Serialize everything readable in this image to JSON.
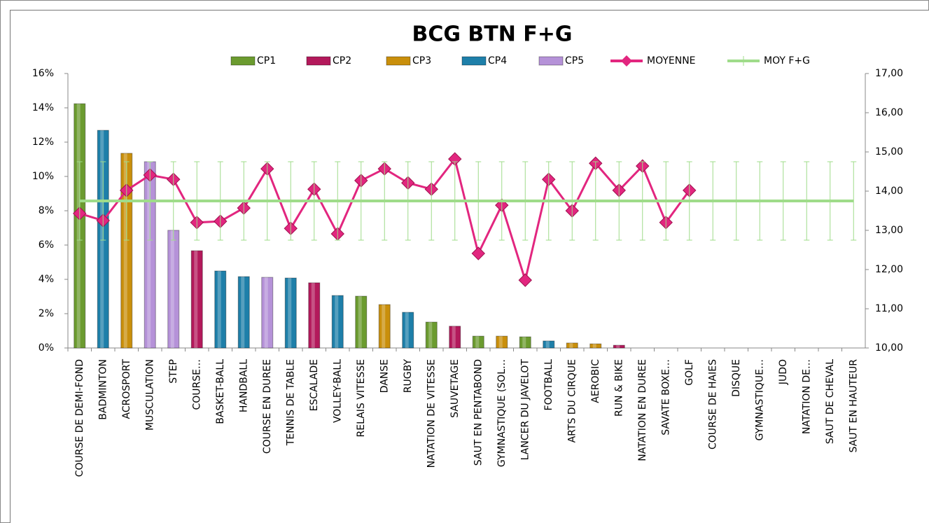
{
  "chart_data": {
    "type": "bar",
    "title": "BCG BTN F+G",
    "categories": [
      "COURSE DE DEMI-FOND",
      "BADMINTON",
      "ACROSPORT",
      "MUSCULATION",
      "STEP",
      "COURSE…",
      "BASKET-BALL",
      "HANDBALL",
      "COURSE EN DUREE",
      "TENNIS DE TABLE",
      "ESCALADE",
      "VOLLEY-BALL",
      "RELAIS VITESSE",
      "DANSE",
      "RUGBY",
      "NATATION DE VITESSE",
      "SAUVETAGE",
      "SAUT EN PENTABOND",
      "GYMNASTIQUE (SOL…",
      "LANCER DU JAVELOT",
      "FOOTBALL",
      "ARTS DU CIRQUE",
      "AEROBIC",
      "RUN & BIKE",
      "NATATION EN DUREE",
      "SAVATE BOXE…",
      "GOLF",
      "COURSE DE HAIES",
      "DISQUE",
      "GYMNASTIQUE…",
      "JUDO",
      "NATATION DE…",
      "SAUT DE CHEVAL",
      "SAUT EN HAUTEUR"
    ],
    "series": [
      {
        "name": "CP1",
        "type": "bar",
        "color": "#6b9b2f",
        "values": [
          14.24,
          null,
          null,
          null,
          null,
          null,
          null,
          null,
          null,
          null,
          null,
          null,
          3.02,
          null,
          null,
          1.51,
          null,
          0.69,
          null,
          0.65,
          null,
          null,
          null,
          null,
          null,
          null,
          null,
          null,
          null,
          null,
          null,
          null,
          null,
          null
        ]
      },
      {
        "name": "CP2",
        "type": "bar",
        "color": "#b3195b",
        "values": [
          null,
          null,
          null,
          null,
          null,
          5.67,
          null,
          null,
          null,
          null,
          3.8,
          null,
          null,
          null,
          null,
          null,
          1.27,
          null,
          null,
          null,
          null,
          null,
          null,
          0.16,
          null,
          null,
          null,
          null,
          null,
          null,
          null,
          null,
          null,
          null
        ]
      },
      {
        "name": "CP3",
        "type": "bar",
        "color": "#c98f0b",
        "values": [
          null,
          null,
          11.35,
          null,
          null,
          null,
          null,
          null,
          null,
          null,
          null,
          null,
          null,
          2.53,
          null,
          null,
          null,
          null,
          0.69,
          null,
          null,
          0.29,
          0.24,
          null,
          null,
          null,
          null,
          null,
          null,
          null,
          null,
          null,
          null,
          null
        ]
      },
      {
        "name": "CP4",
        "type": "bar",
        "color": "#1e7fa9",
        "values": [
          null,
          12.69,
          null,
          null,
          null,
          null,
          4.49,
          4.16,
          null,
          4.08,
          null,
          3.06,
          null,
          null,
          2.08,
          null,
          null,
          null,
          null,
          null,
          0.41,
          null,
          null,
          null,
          null,
          null,
          null,
          null,
          null,
          null,
          null,
          null,
          null,
          null
        ]
      },
      {
        "name": "CP5",
        "type": "bar",
        "color": "#b592d8",
        "values": [
          null,
          null,
          null,
          10.86,
          6.86,
          null,
          null,
          null,
          4.12,
          null,
          null,
          null,
          null,
          null,
          null,
          null,
          null,
          null,
          null,
          null,
          null,
          null,
          null,
          null,
          null,
          null,
          null,
          null,
          null,
          null,
          null,
          null,
          null,
          null
        ]
      },
      {
        "name": "MOYENNE",
        "type": "line",
        "axis": "y2",
        "color": "#e2267f",
        "values": [
          13.43,
          13.25,
          14.02,
          14.41,
          14.3,
          13.2,
          13.23,
          13.57,
          14.57,
          13.05,
          14.05,
          12.91,
          14.27,
          14.57,
          14.21,
          14.05,
          14.82,
          12.41,
          13.64,
          11.73,
          14.3,
          13.5,
          14.71,
          14.02,
          14.64,
          13.2,
          14.02,
          null,
          null,
          null,
          null,
          null,
          null,
          null
        ]
      },
      {
        "name": "MOY F+G",
        "type": "line",
        "axis": "y2",
        "color": "#9fdc8a",
        "values": [
          13.75,
          13.75,
          13.75,
          13.75,
          13.75,
          13.75,
          13.75,
          13.75,
          13.75,
          13.75,
          13.75,
          13.75,
          13.75,
          13.75,
          13.75,
          13.75,
          13.75,
          13.75,
          13.75,
          13.75,
          13.75,
          13.75,
          13.75,
          13.75,
          13.75,
          13.75,
          13.75,
          13.75,
          13.75,
          13.75,
          13.75,
          13.75,
          13.75,
          13.75
        ],
        "errors": [
          1,
          1,
          1,
          1,
          1,
          1,
          1,
          1,
          1,
          1,
          1,
          1,
          1,
          1,
          1,
          1,
          1,
          1,
          1,
          1,
          1,
          1,
          1,
          1,
          1,
          1,
          1,
          1,
          1,
          1,
          1,
          1,
          1,
          1
        ]
      }
    ],
    "ylim": [
      0,
      16
    ],
    "yticks": [
      {
        "value": 0,
        "label": "0%"
      },
      {
        "value": 2,
        "label": "2%"
      },
      {
        "value": 4,
        "label": "4%"
      },
      {
        "value": 6,
        "label": "6%"
      },
      {
        "value": 8,
        "label": "8%"
      },
      {
        "value": 10,
        "label": "10%"
      },
      {
        "value": 12,
        "label": "12%"
      },
      {
        "value": 14,
        "label": "14%"
      },
      {
        "value": 16,
        "label": "16%"
      }
    ],
    "y2lim": [
      10,
      17
    ],
    "y2ticks": [
      {
        "value": 10,
        "label": "10,00"
      },
      {
        "value": 11,
        "label": "11,00"
      },
      {
        "value": 12,
        "label": "12,00"
      },
      {
        "value": 13,
        "label": "13,00"
      },
      {
        "value": 14,
        "label": "14,00"
      },
      {
        "value": 15,
        "label": "15,00"
      },
      {
        "value": 16,
        "label": "16,00"
      },
      {
        "value": 17,
        "label": "17,00"
      }
    ],
    "legend": "top"
  }
}
